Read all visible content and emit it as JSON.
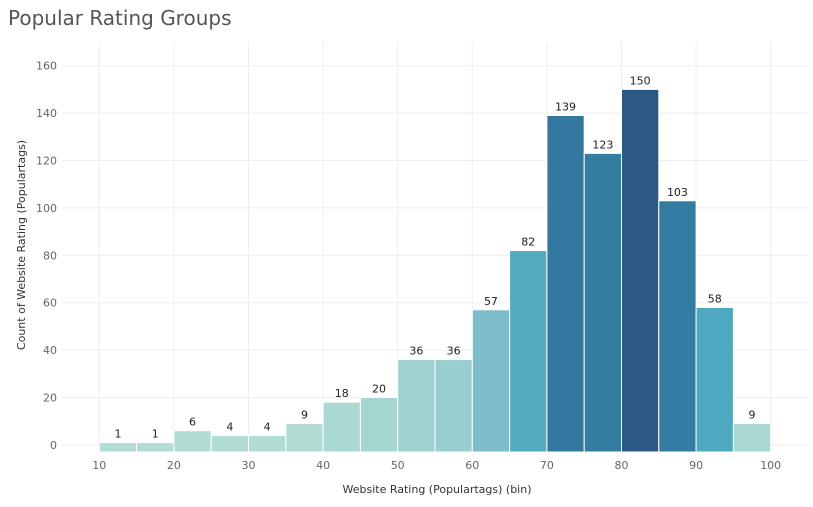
{
  "chart_data": {
    "type": "bar",
    "title": "Popular Rating Groups",
    "xlabel": "Website Rating (Populartags) (bin)",
    "ylabel": "Count of Website Rating (Populartags)",
    "x_ticks": [
      "10",
      "20",
      "30",
      "40",
      "50",
      "60",
      "70",
      "80",
      "90",
      "100"
    ],
    "y_ticks": [
      "0",
      "20",
      "40",
      "60",
      "80",
      "100",
      "120",
      "140",
      "160"
    ],
    "xlim": [
      5,
      105
    ],
    "ylim": [
      -3,
      170
    ],
    "bins": [
      {
        "start": 10,
        "value": 1,
        "label": "1",
        "color": "#b2ddd5"
      },
      {
        "start": 15,
        "value": 1,
        "label": "1",
        "color": "#b2ddd5"
      },
      {
        "start": 20,
        "value": 6,
        "label": "6",
        "color": "#b2ddd5"
      },
      {
        "start": 25,
        "value": 4,
        "label": "4",
        "color": "#b2ddd5"
      },
      {
        "start": 30,
        "value": 4,
        "label": "4",
        "color": "#b2ddd5"
      },
      {
        "start": 35,
        "value": 9,
        "label": "9",
        "color": "#b2ddd5"
      },
      {
        "start": 40,
        "value": 18,
        "label": "18",
        "color": "#a9d9d2"
      },
      {
        "start": 45,
        "value": 20,
        "label": "20",
        "color": "#a5d6d1"
      },
      {
        "start": 50,
        "value": 36,
        "label": "36",
        "color": "#9ed2d0"
      },
      {
        "start": 55,
        "value": 36,
        "label": "36",
        "color": "#98ced0"
      },
      {
        "start": 60,
        "value": 57,
        "label": "57",
        "color": "#7bbcc8"
      },
      {
        "start": 65,
        "value": 82,
        "label": "82",
        "color": "#55aac0"
      },
      {
        "start": 70,
        "value": 139,
        "label": "139",
        "color": "#33789f"
      },
      {
        "start": 75,
        "value": 123,
        "label": "123",
        "color": "#347ca0"
      },
      {
        "start": 80,
        "value": 150,
        "label": "150",
        "color": "#2c5885"
      },
      {
        "start": 85,
        "value": 103,
        "label": "103",
        "color": "#337ba0"
      },
      {
        "start": 90,
        "value": 58,
        "label": "58",
        "color": "#4ea8bf"
      },
      {
        "start": 95,
        "value": 9,
        "label": "9",
        "color": "#a9d9d2"
      }
    ],
    "bin_width": 5,
    "grid": true,
    "grid_color": "#eeeeee",
    "bar_stroke": "#ffffff"
  }
}
